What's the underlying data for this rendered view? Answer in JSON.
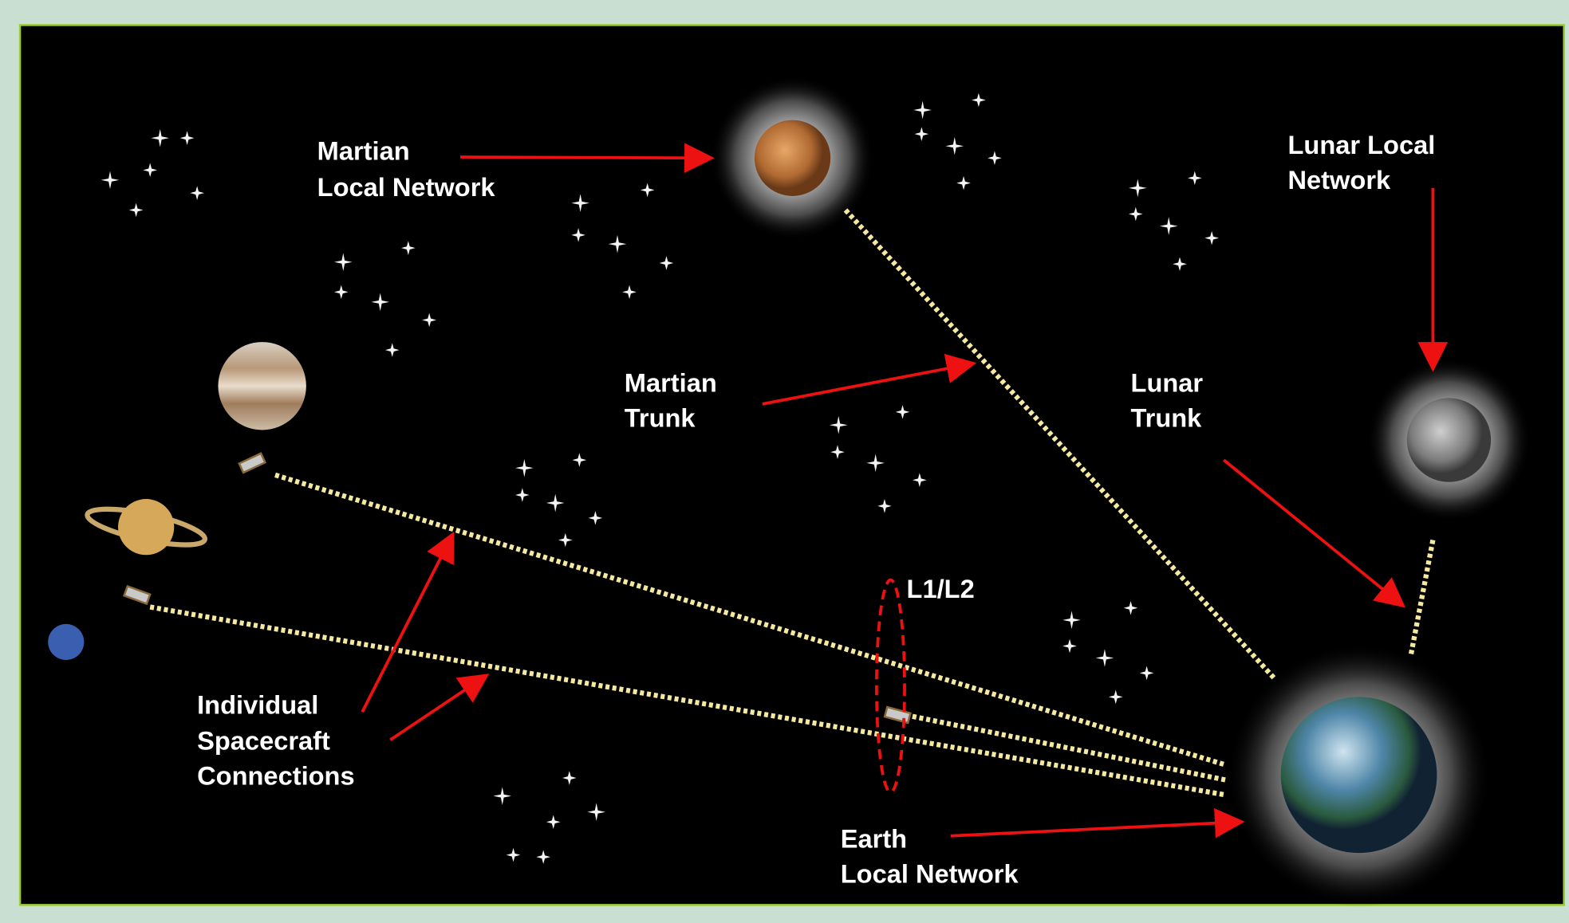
{
  "labels": {
    "martian_local_network": [
      "Martian",
      "Local Network"
    ],
    "lunar_local_network": [
      "Lunar Local",
      "Network"
    ],
    "martian_trunk": [
      "Martian",
      "Trunk"
    ],
    "lunar_trunk": [
      "Lunar",
      "Trunk"
    ],
    "lagrange_points": "L1/L2",
    "individual_spacecraft_connections": [
      "Individual",
      "Spacecraft",
      "Connections"
    ],
    "earth_local_network": [
      "Earth",
      "Local Network"
    ]
  }
}
